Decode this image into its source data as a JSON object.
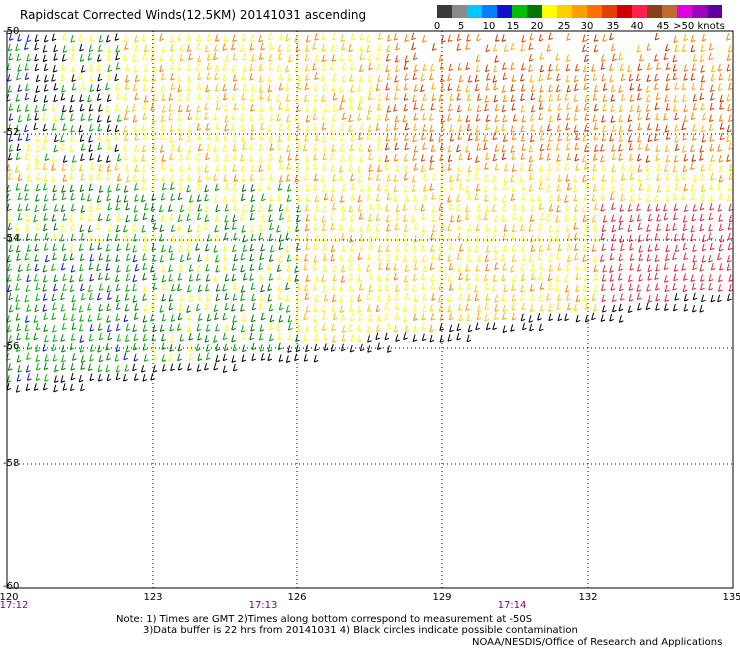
{
  "title": "Rapidscat Corrected Winds(12.5KM) 20141031 ascending",
  "legend": {
    "labels": [
      "0",
      "5",
      "10",
      "15",
      "20",
      "25",
      "30",
      "35",
      "40",
      "45",
      ">50 knots"
    ],
    "colors": [
      "#3a3a3a",
      "#8a8a8a",
      "#00c8ff",
      "#0080ff",
      "#1010c8",
      "#00c000",
      "#007800",
      "#ffff00",
      "#ffd000",
      "#ffa000",
      "#ff7000",
      "#e04000",
      "#d00000",
      "#ff2050",
      "#8a4020",
      "#c06a30",
      "#e000e0",
      "#a000c0",
      "#6000a0"
    ]
  },
  "axes": {
    "lat_labels": [
      "-50",
      "-52",
      "-54",
      "-56",
      "-58",
      "-60"
    ],
    "lon_labels": [
      "120",
      "123",
      "126",
      "129",
      "132",
      "135"
    ],
    "time_labels": [
      "17:12",
      "17:13",
      "17:14"
    ]
  },
  "notes": [
    "Note: 1) Times are GMT 2)Times along bottom correspond to measurement at -50S",
    "3)Data buffer is 22 hrs from 20141031 4) Black circles indicate possible contamination"
  ],
  "credit": "NOAA/NESDIS/Office of Research and Applications"
}
